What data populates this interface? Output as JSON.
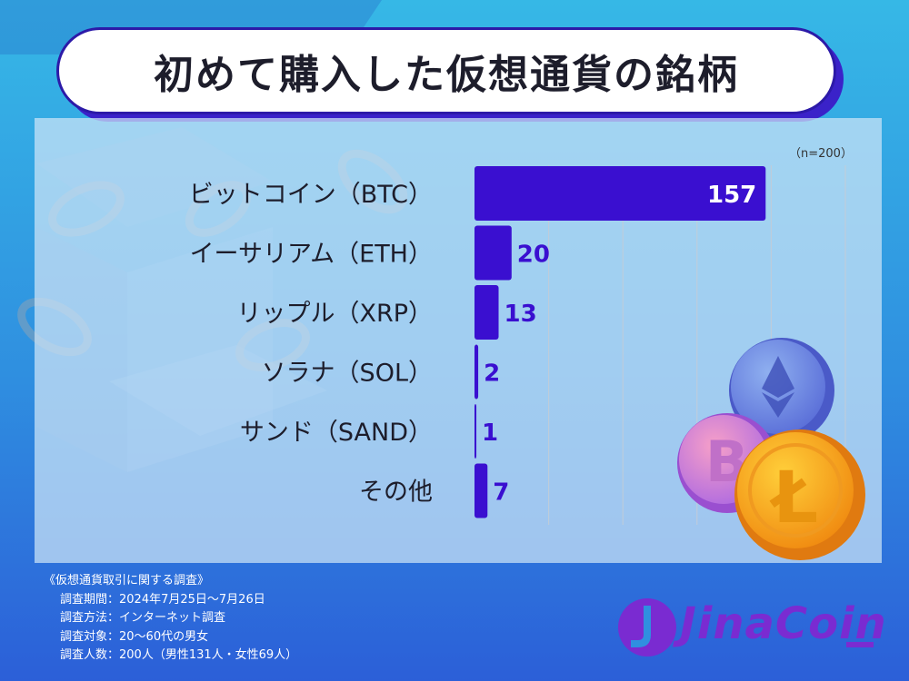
{
  "header": {
    "title": "初めて購入した仮想通貨の銘柄",
    "sample_note": "（n=200）"
  },
  "chart_data": {
    "type": "bar",
    "orientation": "horizontal",
    "categories": [
      "ビットコイン（BTC）",
      "イーサリアム（ETH）",
      "リップル（XRP）",
      "ソラナ（SOL）",
      "サンド（SAND）",
      "その他"
    ],
    "values": [
      157,
      20,
      13,
      2,
      1,
      7
    ],
    "xlim": [
      0,
      200
    ],
    "grid": true,
    "bar_color": "#3a0fd0",
    "label_color_inside": "#ffffff",
    "label_color_outside": "#3a0fd0"
  },
  "survey": {
    "name": "《仮想通貨取引に関する調査》",
    "lines": [
      "調査期間：2024年7月25日〜7月26日",
      "調査方法：インターネット調査",
      "調査対象：20〜60代の男女",
      "調査人数：200人（男性131人・女性69人）"
    ]
  },
  "brand": {
    "name": "JinaCoin",
    "color": "#7a2bd1"
  }
}
